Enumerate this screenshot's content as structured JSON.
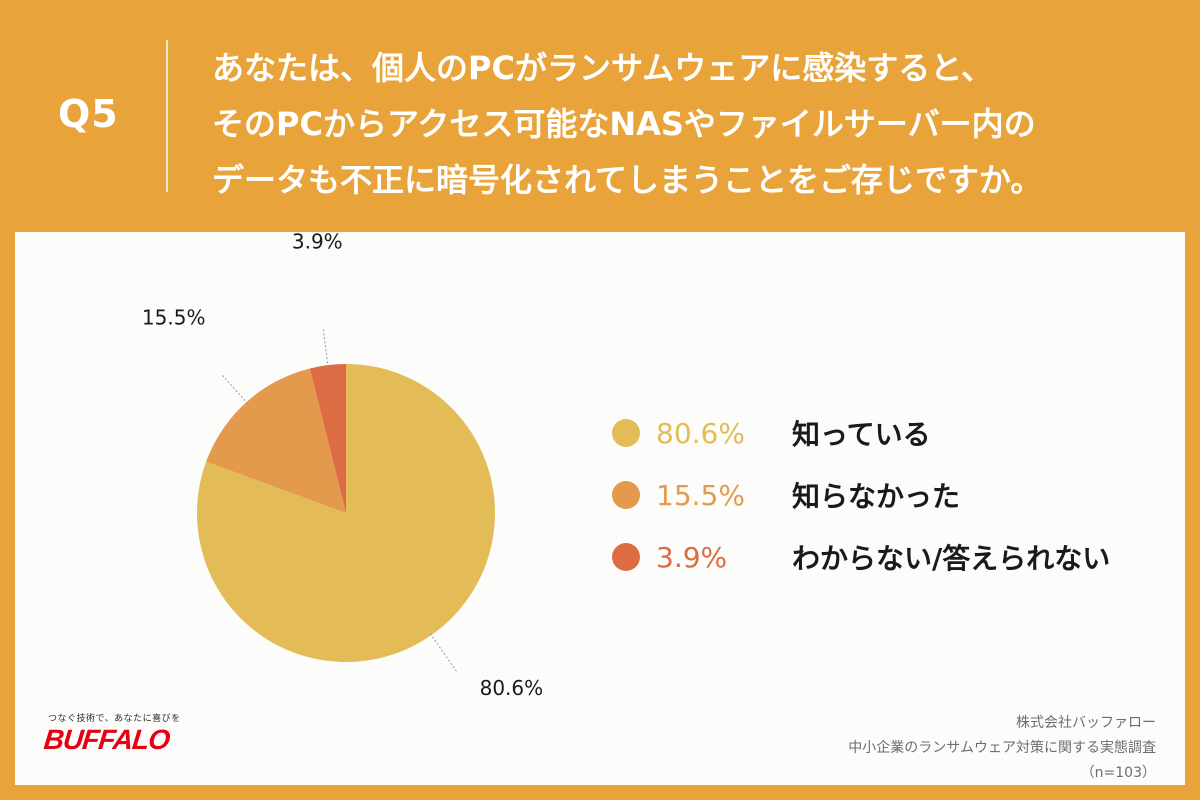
{
  "header": {
    "q_label": "Q5",
    "question_lines": [
      "あなたは、個人のPCがランサムウェアに感染すると、",
      "そのPCからアクセス可能なNASやファイルサーバー内の",
      "データも不正に暗号化されてしまうことをご存じですか。"
    ]
  },
  "colors": {
    "background": "#E8A43A",
    "panel": "#FCFCFA",
    "slice_known": "#E3BC57",
    "slice_unknown": "#E39A4D",
    "slice_dontknow": "#DD6C44"
  },
  "chart_data": {
    "type": "pie",
    "slices": [
      {
        "label": "知っている",
        "value": 80.6,
        "value_label": "80.6%",
        "color": "#E3BC57"
      },
      {
        "label": "知らなかった",
        "value": 15.5,
        "value_label": "15.5%",
        "color": "#E39A4D"
      },
      {
        "label": "わからない/答えられない",
        "value": 3.9,
        "value_label": "3.9%",
        "color": "#DD6C44"
      }
    ],
    "start_angle_deg": 0,
    "direction": "clockwise",
    "legend_position": "right"
  },
  "logo": {
    "tagline": "つなぐ技術で、あなたに喜びを",
    "brand": "BUFFALO"
  },
  "source": {
    "company": "株式会社バッファロー",
    "survey": "中小企業のランサムウェア対策に関する実態調査",
    "sample": "（n=103）"
  }
}
